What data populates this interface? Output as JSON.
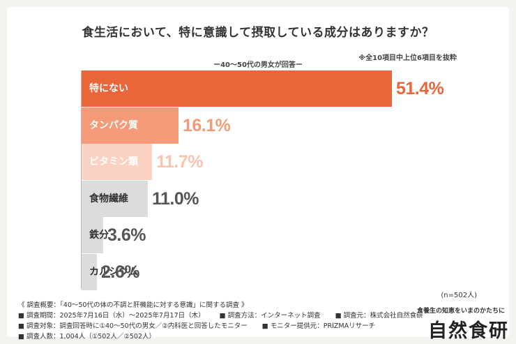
{
  "header": {
    "title": "食生活において、特に意識して摂取している成分はありますか？",
    "subtitle": "ー40～50代の男女が回答ー",
    "note": "※全10項目中上位6項目を抜粋"
  },
  "chart_data": {
    "type": "bar",
    "orientation": "horizontal",
    "title": "食生活において、特に意識して摂取している成分はありますか？",
    "categories": [
      "特にない",
      "タンパク質",
      "ビタミン類",
      "食物繊維",
      "鉄分",
      "カルシウム"
    ],
    "values": [
      51.4,
      16.1,
      11.7,
      11.0,
      3.6,
      2.6
    ],
    "value_labels": [
      "51.4%",
      "16.1%",
      "11.7%",
      "11.0%",
      "3.6%",
      "2.6%"
    ],
    "xlim": [
      0,
      60
    ],
    "grid": false,
    "bar_colors": [
      "#e8663a",
      "#f59a78",
      "#fbd2c2",
      "#dcdcdc",
      "#dcdcdc",
      "#dcdcdc"
    ],
    "value_colors": [
      "#e8663a",
      "#f59a78",
      "#fbc3ae",
      "#555555",
      "#555555",
      "#555555"
    ],
    "label_colors": [
      "#ffffff",
      "#ffffff",
      "#ffffff",
      "#333333",
      "#333333",
      "#333333"
    ]
  },
  "sample_note": "(n=502人)",
  "footer": {
    "overview": "《 調査概要：「40～50代の体の不調と肝機能に対する意識」に関する調査 》",
    "period": "■ 調査期間：2025年7月16日（水）～2025年7月17日（木）",
    "method": "■ 調査方法：インターネット調査",
    "source": "■ 調査元：株式会社自然食研",
    "target": "■ 調査対象：調査回答時に①40～50代の男女／②内科医と回答したモニター",
    "provider": "■ モニター提供元：PRIZMAリサーチ",
    "count": "■ 調査人数：1,004人（①502人／②502人）"
  },
  "brand": {
    "tagline": "食養生の知恵をいまのかたちに",
    "name": "自然食研"
  }
}
